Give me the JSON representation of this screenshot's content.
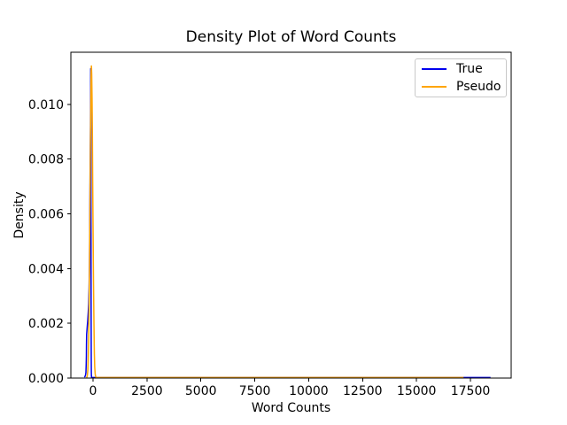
{
  "chart_data": {
    "type": "line",
    "title": "Density Plot of Word Counts",
    "xlabel": "Word Counts",
    "ylabel": "Density",
    "xlim": [
      -1027,
      19389
    ],
    "ylim": [
      0,
      0.0119
    ],
    "grid": false,
    "background": "#ffffff",
    "axis_color": "#000000",
    "xticks": {
      "values": [
        0,
        2500,
        5000,
        7500,
        10000,
        12500,
        15000,
        17500
      ],
      "labels": [
        "0",
        "2500",
        "5000",
        "7500",
        "10000",
        "12500",
        "15000",
        "17500"
      ]
    },
    "yticks": {
      "values": [
        0.0,
        0.002,
        0.004,
        0.006,
        0.008,
        0.01
      ],
      "labels": [
        "0.000",
        "0.002",
        "0.004",
        "0.006",
        "0.008",
        "0.010"
      ]
    },
    "legend": {
      "position": "upper right",
      "border_color": "#c9c9c9"
    },
    "series": [
      {
        "name": "True",
        "color": "#0000ee",
        "points": [
          [
            -400,
            3e-05
          ],
          [
            -370,
            6e-05
          ],
          [
            -345,
            0.00012
          ],
          [
            -330,
            0.0002
          ],
          [
            -315,
            0.0005
          ],
          [
            -308,
            0.0008
          ],
          [
            -302,
            0.0012
          ],
          [
            -297,
            0.0016
          ],
          [
            -270,
            0.00185
          ],
          [
            -245,
            0.0021
          ],
          [
            -220,
            0.0024
          ],
          [
            -200,
            0.0027
          ],
          [
            -180,
            0.0033
          ],
          [
            -166,
            0.0041
          ],
          [
            -150,
            0.0056
          ],
          [
            -138,
            0.007
          ],
          [
            -122,
            0.0086
          ],
          [
            -110,
            0.01
          ],
          [
            -105,
            0.0113
          ],
          [
            -101,
            0.0106
          ],
          [
            -97,
            0.0088
          ],
          [
            -93,
            0.0062
          ],
          [
            -89,
            0.0038
          ],
          [
            -85,
            0.0018
          ],
          [
            -81,
            0.0007
          ],
          [
            -77,
            0.00022
          ],
          [
            -72,
            8e-05
          ],
          [
            -65,
            3e-05
          ],
          [
            -50,
            2e-05
          ],
          [
            0,
            2e-05
          ],
          [
            1000,
            2e-05
          ],
          [
            5000,
            2e-05
          ],
          [
            10000,
            2e-05
          ],
          [
            15000,
            2e-05
          ],
          [
            18000,
            2e-05
          ],
          [
            18430,
            2e-05
          ]
        ]
      },
      {
        "name": "Pseudo",
        "color": "#ffa500",
        "points": [
          [
            -300,
            1.5e-05
          ],
          [
            -280,
            4.56e-05
          ],
          [
            -260,
            0.000127
          ],
          [
            -240,
            0.000317
          ],
          [
            -220,
            0.000713
          ],
          [
            -200,
            0.00145
          ],
          [
            -180,
            0.00264
          ],
          [
            -160,
            0.00436
          ],
          [
            -140,
            0.00647
          ],
          [
            -120,
            0.00866
          ],
          [
            -100,
            0.01044
          ],
          [
            -85,
            0.01122
          ],
          [
            -74,
            0.0114
          ],
          [
            -60,
            0.01111
          ],
          [
            -45,
            0.01022
          ],
          [
            -30,
            0.00886
          ],
          [
            -15,
            0.00725
          ],
          [
            0,
            0.00559
          ],
          [
            20,
            0.00361
          ],
          [
            40,
            0.0021
          ],
          [
            60,
            0.0009
          ],
          [
            80,
            0.0004
          ],
          [
            100,
            0.00016
          ],
          [
            120,
            6e-05
          ],
          [
            140,
            2.5e-05
          ],
          [
            155,
            2e-05
          ],
          [
            1000,
            2e-05
          ],
          [
            5000,
            2e-05
          ],
          [
            10000,
            2e-05
          ],
          [
            15000,
            2e-05
          ],
          [
            17000,
            2e-05
          ],
          [
            17180,
            2e-05
          ]
        ]
      }
    ]
  }
}
